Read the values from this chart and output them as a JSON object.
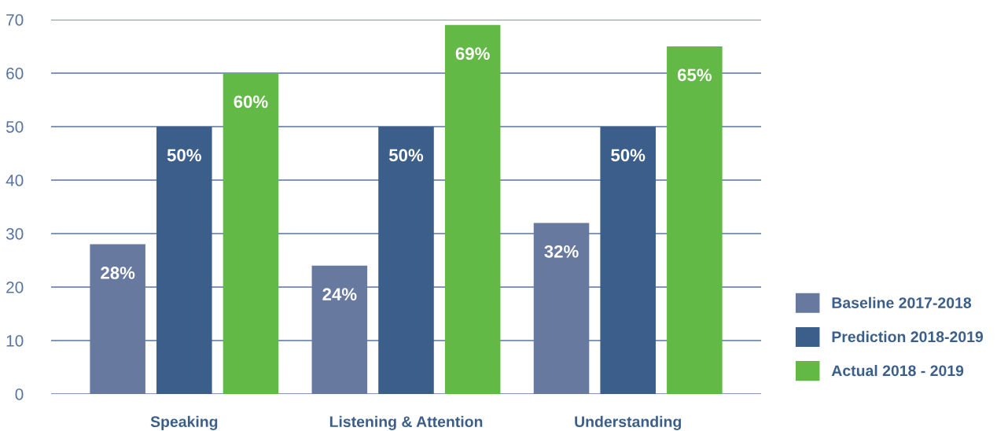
{
  "chart_data": {
    "type": "bar",
    "categories": [
      "Speaking",
      "Listening & Attention",
      "Understanding"
    ],
    "series": [
      {
        "name": "Baseline 2017-2018",
        "color": "#67799f",
        "values": [
          28,
          24,
          32
        ],
        "value_labels": [
          "28%",
          "24%",
          "32%"
        ]
      },
      {
        "name": "Prediction 2018-2019",
        "color": "#3b5f8a",
        "values": [
          50,
          50,
          50
        ],
        "value_labels": [
          "50%",
          "50%",
          "50%"
        ]
      },
      {
        "name": "Actual 2018 - 2019",
        "color": "#62b946",
        "values": [
          60,
          69,
          65
        ],
        "value_labels": [
          "60%",
          "69%",
          "65%"
        ]
      }
    ],
    "ylim": [
      0,
      70
    ],
    "yticks": [
      0,
      10,
      20,
      30,
      40,
      50,
      60,
      70
    ],
    "grid": "y",
    "legend": "bottom right"
  }
}
